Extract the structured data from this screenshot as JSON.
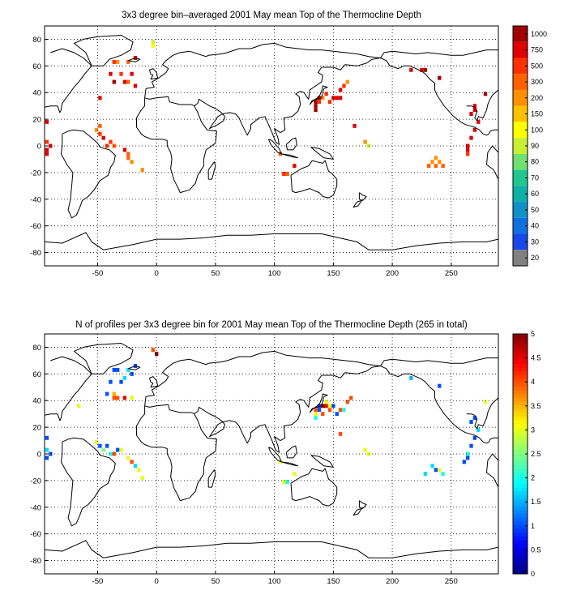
{
  "chart_data": [
    {
      "type": "heatmap",
      "title": "3x3 degree bin–averaged 2001 May mean Top of the Thermocline Depth",
      "xlim": [
        -95,
        290
      ],
      "ylim": [
        -90,
        90
      ],
      "xticks": [
        -50,
        0,
        50,
        100,
        150,
        200,
        250
      ],
      "yticks": [
        80,
        60,
        40,
        20,
        0,
        -20,
        -40,
        -60,
        -80
      ],
      "grid": true,
      "colorbar": {
        "labels": [
          "1000",
          "750",
          "500",
          "300",
          "200",
          "150",
          "100",
          "90",
          "80",
          "70",
          "60",
          "50",
          "40",
          "30",
          "20"
        ],
        "colors": [
          "#a00000",
          "#e00000",
          "#ff3000",
          "#ff6000",
          "#ff9000",
          "#ffc000",
          "#ffff00",
          "#c8f030",
          "#70e070",
          "#20c890",
          "#10b0a8",
          "#1090c8",
          "#1070e0",
          "#1848e8",
          "#808080"
        ]
      },
      "cells": [
        {
          "lon": -3,
          "lat": 78,
          "c": 7
        },
        {
          "lon": -3,
          "lat": 75,
          "c": 8
        },
        {
          "lon": -36,
          "lat": 63,
          "c": 12
        },
        {
          "lon": -33,
          "lat": 63,
          "c": 10
        },
        {
          "lon": -24,
          "lat": 63,
          "c": 11
        },
        {
          "lon": -18,
          "lat": 66,
          "c": 13
        },
        {
          "lon": -39,
          "lat": 54,
          "c": 13
        },
        {
          "lon": -30,
          "lat": 54,
          "c": 12
        },
        {
          "lon": -21,
          "lat": 54,
          "c": 13
        },
        {
          "lon": -27,
          "lat": 48,
          "c": 13
        },
        {
          "lon": -24,
          "lat": 48,
          "c": 11
        },
        {
          "lon": -36,
          "lat": 48,
          "c": 14
        },
        {
          "lon": -48,
          "lat": 36,
          "c": 13
        },
        {
          "lon": -18,
          "lat": 45,
          "c": 13
        },
        {
          "lon": -48,
          "lat": 15,
          "c": 11
        },
        {
          "lon": -51,
          "lat": 12,
          "c": 10
        },
        {
          "lon": -48,
          "lat": 9,
          "c": 12
        },
        {
          "lon": -45,
          "lat": 6,
          "c": 13
        },
        {
          "lon": -39,
          "lat": 3,
          "c": 12
        },
        {
          "lon": -36,
          "lat": 0,
          "c": 11
        },
        {
          "lon": -42,
          "lat": 0,
          "c": 12
        },
        {
          "lon": -27,
          "lat": -3,
          "c": 13
        },
        {
          "lon": -24,
          "lat": -6,
          "c": 11
        },
        {
          "lon": -24,
          "lat": -9,
          "c": 11
        },
        {
          "lon": -21,
          "lat": -12,
          "c": 10
        },
        {
          "lon": -12,
          "lat": -18,
          "c": 10
        },
        {
          "lon": -93,
          "lat": 18,
          "c": 13
        },
        {
          "lon": -93,
          "lat": 3,
          "c": 12
        },
        {
          "lon": -90,
          "lat": 0,
          "c": 13
        },
        {
          "lon": -93,
          "lat": -3,
          "c": 13
        },
        {
          "lon": -93,
          "lat": -6,
          "c": 13
        },
        {
          "lon": 135,
          "lat": 33,
          "c": 14
        },
        {
          "lon": 135,
          "lat": 30,
          "c": 14
        },
        {
          "lon": 135,
          "lat": 27,
          "c": 14
        },
        {
          "lon": 138,
          "lat": 33,
          "c": 12
        },
        {
          "lon": 141,
          "lat": 36,
          "c": 10
        },
        {
          "lon": 144,
          "lat": 39,
          "c": 12
        },
        {
          "lon": 147,
          "lat": 33,
          "c": 12
        },
        {
          "lon": 150,
          "lat": 36,
          "c": 13
        },
        {
          "lon": 153,
          "lat": 36,
          "c": 13
        },
        {
          "lon": 156,
          "lat": 42,
          "c": 13
        },
        {
          "lon": 159,
          "lat": 45,
          "c": 12
        },
        {
          "lon": 162,
          "lat": 48,
          "c": 10
        },
        {
          "lon": 138,
          "lat": 36,
          "c": 13
        },
        {
          "lon": 156,
          "lat": 36,
          "c": 13
        },
        {
          "lon": 168,
          "lat": 15,
          "c": 13
        },
        {
          "lon": 177,
          "lat": 3,
          "c": 10
        },
        {
          "lon": 180,
          "lat": 0,
          "c": 7
        },
        {
          "lon": 105,
          "lat": -6,
          "c": 11
        },
        {
          "lon": 108,
          "lat": -21,
          "c": 12
        },
        {
          "lon": 111,
          "lat": -21,
          "c": 11
        },
        {
          "lon": 117,
          "lat": -15,
          "c": 13
        },
        {
          "lon": 237,
          "lat": -9,
          "c": 10
        },
        {
          "lon": 234,
          "lat": -12,
          "c": 10
        },
        {
          "lon": 240,
          "lat": -12,
          "c": 10
        },
        {
          "lon": 243,
          "lat": -15,
          "c": 11
        },
        {
          "lon": 231,
          "lat": -15,
          "c": 11
        },
        {
          "lon": 237,
          "lat": -15,
          "c": 11
        },
        {
          "lon": 270,
          "lat": 27,
          "c": 13
        },
        {
          "lon": 267,
          "lat": 24,
          "c": 13
        },
        {
          "lon": 273,
          "lat": 18,
          "c": 13
        },
        {
          "lon": 270,
          "lat": 12,
          "c": 13
        },
        {
          "lon": 267,
          "lat": 6,
          "c": 13
        },
        {
          "lon": 264,
          "lat": 0,
          "c": 13
        },
        {
          "lon": 264,
          "lat": -3,
          "c": 13
        },
        {
          "lon": 264,
          "lat": -6,
          "c": 12
        },
        {
          "lon": 270,
          "lat": 30,
          "c": 13
        },
        {
          "lon": 279,
          "lat": 39,
          "c": 14
        },
        {
          "lon": 240,
          "lat": 51,
          "c": 14
        },
        {
          "lon": 216,
          "lat": 57,
          "c": 13
        },
        {
          "lon": 225,
          "lat": 57,
          "c": 13
        },
        {
          "lon": 228,
          "lat": 57,
          "c": 14
        }
      ]
    },
    {
      "type": "heatmap",
      "title": "N of profiles per 3x3 degree bin for 2001 May mean Top of the Thermocline Depth  (265 in total)",
      "xlim": [
        -95,
        290
      ],
      "ylim": [
        -90,
        90
      ],
      "xticks": [
        -50,
        0,
        50,
        100,
        150,
        200,
        250
      ],
      "yticks": [
        80,
        60,
        40,
        20,
        0,
        -20,
        -40,
        -60,
        -80
      ],
      "grid": true,
      "colorbar": {
        "labels": [
          "5",
          "4.5",
          "4",
          "3.5",
          "3",
          "2.5",
          "2",
          "1.5",
          "1",
          "0.5",
          "0"
        ],
        "range": [
          0,
          5
        ]
      },
      "cells": [
        {
          "lon": -3,
          "lat": 78,
          "v": 4
        },
        {
          "lon": 0,
          "lat": 75,
          "v": 5
        },
        {
          "lon": -36,
          "lat": 63,
          "v": 1
        },
        {
          "lon": -33,
          "lat": 63,
          "v": 1
        },
        {
          "lon": -24,
          "lat": 63,
          "v": 1.7
        },
        {
          "lon": -18,
          "lat": 66,
          "v": 1
        },
        {
          "lon": -39,
          "lat": 54,
          "v": 1
        },
        {
          "lon": -30,
          "lat": 54,
          "v": 1
        },
        {
          "lon": -27,
          "lat": 57,
          "v": 1.7
        },
        {
          "lon": -21,
          "lat": 60,
          "v": 1
        },
        {
          "lon": -36,
          "lat": 45,
          "v": 3.5
        },
        {
          "lon": -33,
          "lat": 42,
          "v": 4
        },
        {
          "lon": -27,
          "lat": 42,
          "v": 4.5
        },
        {
          "lon": -21,
          "lat": 42,
          "v": 3
        },
        {
          "lon": -36,
          "lat": 42,
          "v": 4
        },
        {
          "lon": -42,
          "lat": 45,
          "v": 1
        },
        {
          "lon": -66,
          "lat": 36,
          "v": 3
        },
        {
          "lon": -93,
          "lat": 12,
          "v": 1
        },
        {
          "lon": -90,
          "lat": 0,
          "v": 1
        },
        {
          "lon": -93,
          "lat": -3,
          "v": 1
        },
        {
          "lon": -93,
          "lat": 3,
          "v": 1.7
        },
        {
          "lon": -51,
          "lat": 9,
          "v": 3
        },
        {
          "lon": -48,
          "lat": 6,
          "v": 1
        },
        {
          "lon": -45,
          "lat": 3,
          "v": 2.5
        },
        {
          "lon": -42,
          "lat": 6,
          "v": 1
        },
        {
          "lon": -39,
          "lat": 0,
          "v": 2
        },
        {
          "lon": -36,
          "lat": 0,
          "v": 4
        },
        {
          "lon": -33,
          "lat": 3,
          "v": 1
        },
        {
          "lon": -30,
          "lat": 3,
          "v": 3
        },
        {
          "lon": -24,
          "lat": -3,
          "v": 3
        },
        {
          "lon": -21,
          "lat": -6,
          "v": 4
        },
        {
          "lon": -18,
          "lat": -9,
          "v": 1.7
        },
        {
          "lon": -15,
          "lat": -12,
          "v": 3
        },
        {
          "lon": -12,
          "lat": -18,
          "v": 3
        },
        {
          "lon": 135,
          "lat": 33,
          "v": 4
        },
        {
          "lon": 135,
          "lat": 30,
          "v": 3
        },
        {
          "lon": 138,
          "lat": 36,
          "v": 1
        },
        {
          "lon": 138,
          "lat": 33,
          "v": 1
        },
        {
          "lon": 141,
          "lat": 36,
          "v": 5
        },
        {
          "lon": 144,
          "lat": 36,
          "v": 4.5
        },
        {
          "lon": 141,
          "lat": 30,
          "v": 4
        },
        {
          "lon": 144,
          "lat": 39,
          "v": 3
        },
        {
          "lon": 147,
          "lat": 33,
          "v": 4
        },
        {
          "lon": 150,
          "lat": 36,
          "v": 1
        },
        {
          "lon": 153,
          "lat": 30,
          "v": 1
        },
        {
          "lon": 156,
          "lat": 33,
          "v": 4
        },
        {
          "lon": 159,
          "lat": 33,
          "v": 2
        },
        {
          "lon": 162,
          "lat": 39,
          "v": 4
        },
        {
          "lon": 165,
          "lat": 42,
          "v": 4
        },
        {
          "lon": 147,
          "lat": 36,
          "v": 3
        },
        {
          "lon": 135,
          "lat": 27,
          "v": 2
        },
        {
          "lon": 156,
          "lat": 15,
          "v": 4
        },
        {
          "lon": 177,
          "lat": 3,
          "v": 3
        },
        {
          "lon": 180,
          "lat": 0,
          "v": 3
        },
        {
          "lon": 105,
          "lat": -6,
          "v": 3
        },
        {
          "lon": 108,
          "lat": -21,
          "v": 3
        },
        {
          "lon": 111,
          "lat": -21,
          "v": 2
        },
        {
          "lon": 117,
          "lat": -15,
          "v": 3
        },
        {
          "lon": 234,
          "lat": -9,
          "v": 1.7
        },
        {
          "lon": 237,
          "lat": -12,
          "v": 1
        },
        {
          "lon": 240,
          "lat": -12,
          "v": 3
        },
        {
          "lon": 243,
          "lat": -15,
          "v": 2
        },
        {
          "lon": 228,
          "lat": -15,
          "v": 1.7
        },
        {
          "lon": 270,
          "lat": 27,
          "v": 1
        },
        {
          "lon": 267,
          "lat": 24,
          "v": 1
        },
        {
          "lon": 273,
          "lat": 18,
          "v": 1.7
        },
        {
          "lon": 270,
          "lat": 12,
          "v": 1
        },
        {
          "lon": 267,
          "lat": 6,
          "v": 1
        },
        {
          "lon": 264,
          "lat": 0,
          "v": 2
        },
        {
          "lon": 264,
          "lat": -3,
          "v": 1
        },
        {
          "lon": 261,
          "lat": -6,
          "v": 1
        },
        {
          "lon": 279,
          "lat": 39,
          "v": 3
        },
        {
          "lon": 216,
          "lat": 57,
          "v": 1.5
        },
        {
          "lon": 240,
          "lat": 51,
          "v": 1
        }
      ]
    }
  ]
}
